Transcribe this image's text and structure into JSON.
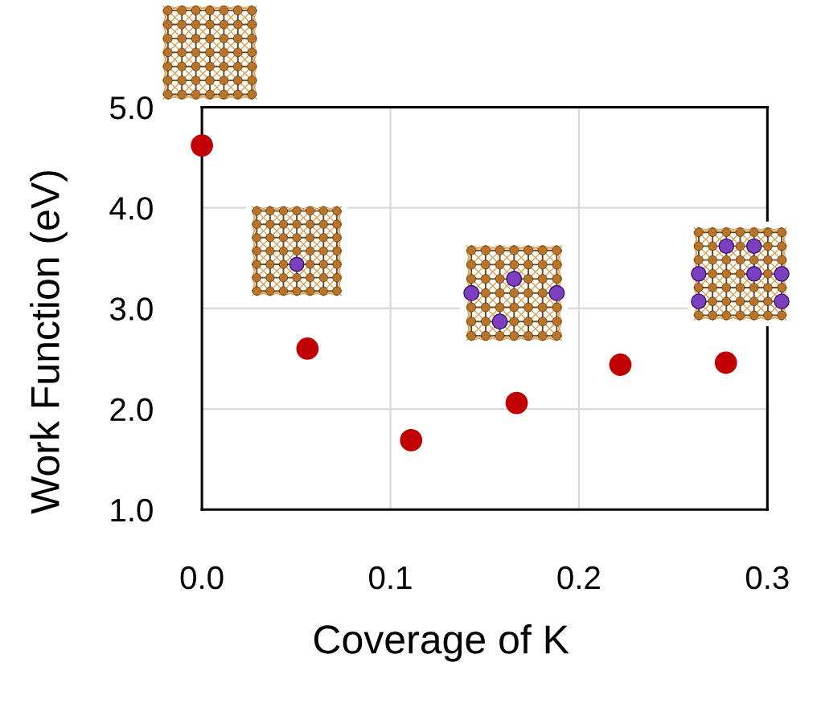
{
  "chart_data": {
    "type": "scatter",
    "xlabel": "Coverage of K",
    "ylabel": "Work Function (eV)",
    "x": [
      0.0,
      0.056,
      0.111,
      0.167,
      0.222,
      0.278
    ],
    "values": [
      4.62,
      2.6,
      1.69,
      2.06,
      2.44,
      2.46
    ],
    "color": "#c00000",
    "marker": "circle",
    "xlim": [
      0,
      0.3
    ],
    "xticks": [
      {
        "value": 0,
        "label": "0.0"
      },
      0.1,
      0.2,
      0.3
    ],
    "ylim": [
      1,
      5
    ],
    "yticks": [
      {
        "value": 1,
        "label": "1.0"
      },
      {
        "value": 2,
        "label": "2.0"
      },
      {
        "value": 3,
        "label": "3.0"
      },
      {
        "value": 4,
        "label": "4.0"
      },
      {
        "value": 5,
        "label": "5.0"
      }
    ],
    "grid": true
  }
}
